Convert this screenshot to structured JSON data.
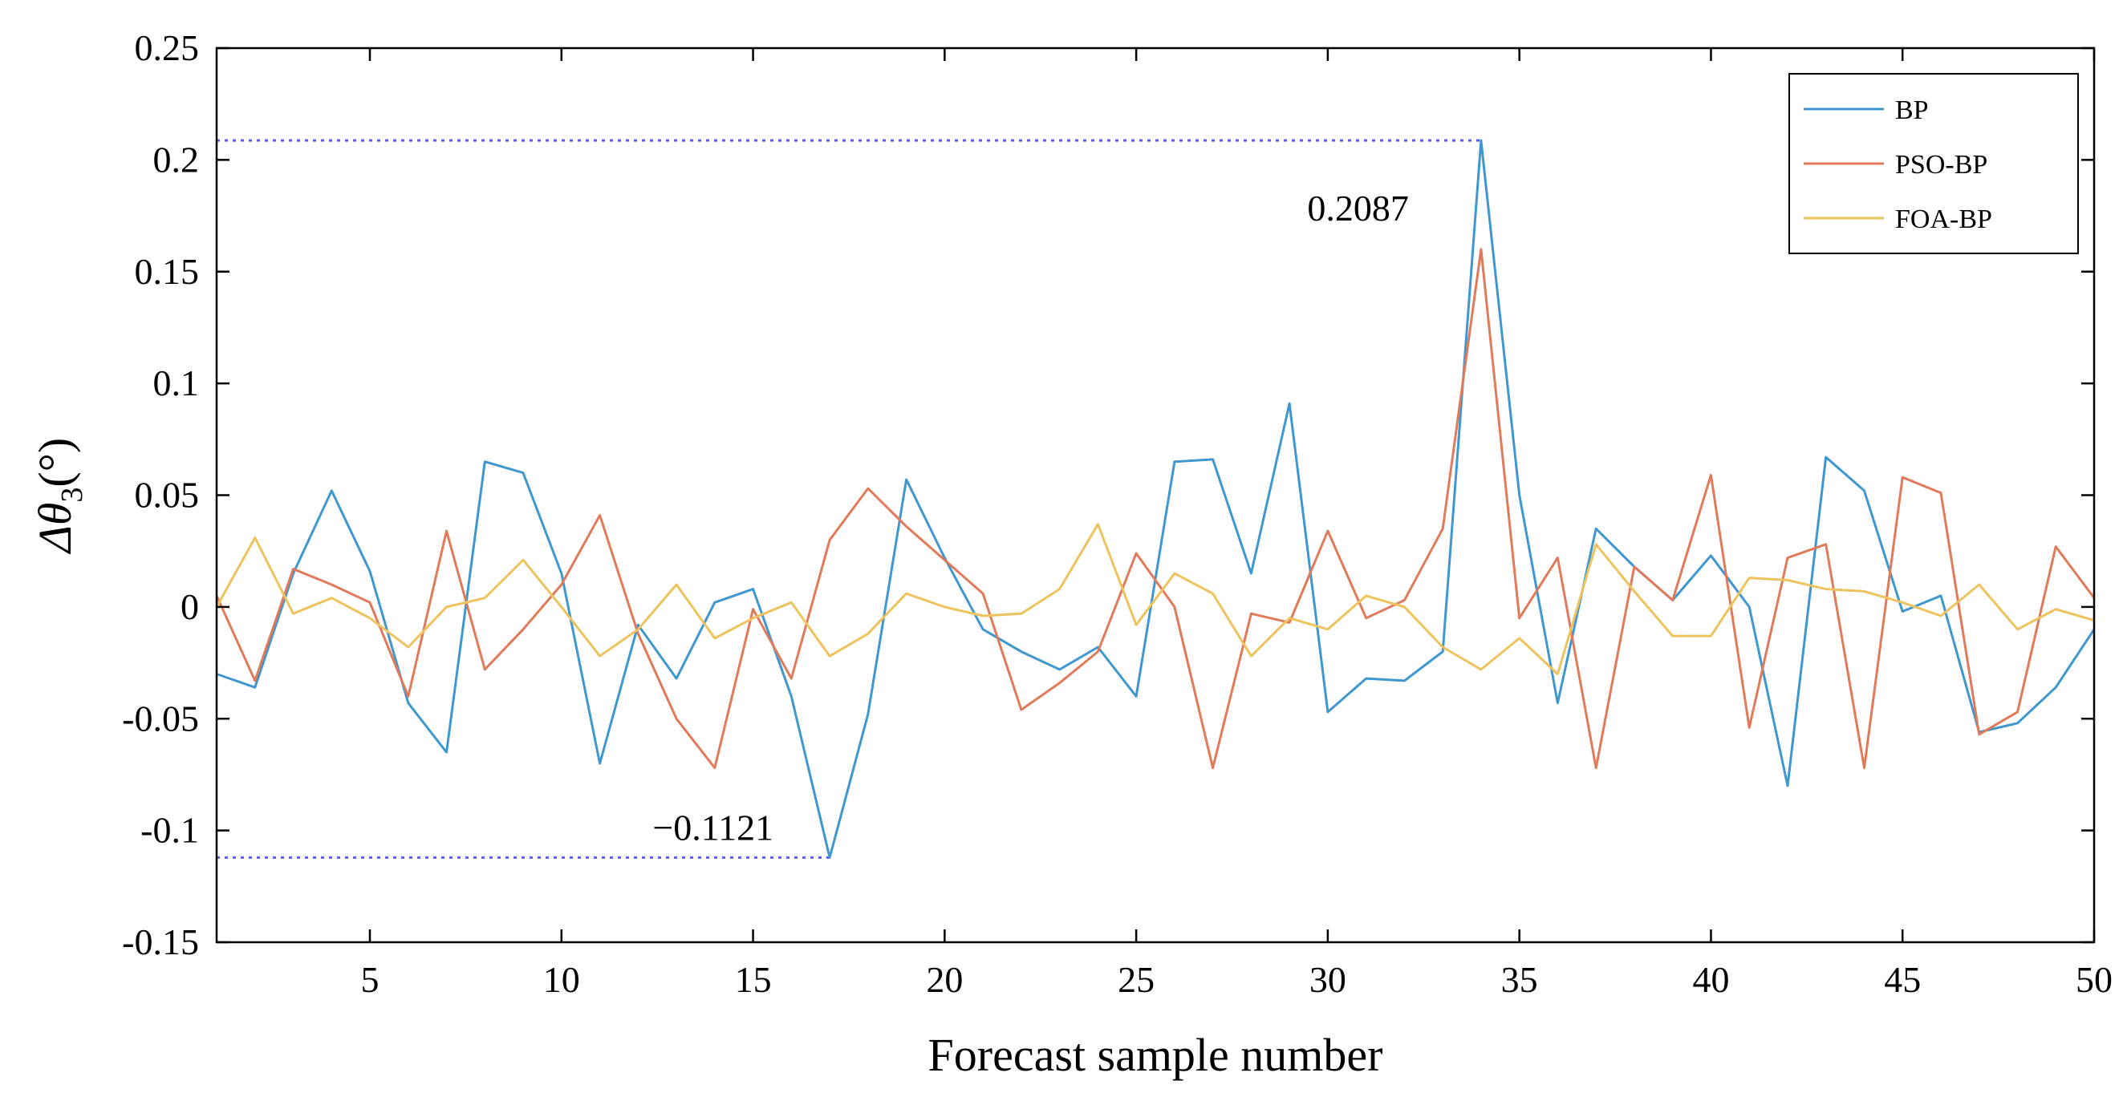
{
  "chart_data": {
    "type": "line",
    "title": "",
    "xlabel": "Forecast sample number",
    "ylabel_main": "Δθ",
    "ylabel_sub": "3",
    "ylabel_unit": "(°)",
    "xlim": [
      1,
      50
    ],
    "ylim": [
      -0.15,
      0.25
    ],
    "xticks": [
      5,
      10,
      15,
      20,
      25,
      30,
      35,
      40,
      45,
      50
    ],
    "xtick_labels": [
      "5",
      "10",
      "15",
      "20",
      "25",
      "30",
      "35",
      "40",
      "45",
      "50"
    ],
    "yticks": [
      -0.15,
      -0.1,
      -0.05,
      0,
      0.05,
      0.1,
      0.15,
      0.2,
      0.25
    ],
    "ytick_labels": [
      "-0.15",
      "-0.1",
      "-0.05",
      "0",
      "0.05",
      "0.1",
      "0.15",
      "0.2",
      "0.25"
    ],
    "grid": false,
    "legend_position": "top-right",
    "x": [
      1,
      2,
      3,
      4,
      5,
      6,
      7,
      8,
      9,
      10,
      11,
      12,
      13,
      14,
      15,
      16,
      17,
      18,
      19,
      20,
      21,
      22,
      23,
      24,
      25,
      26,
      27,
      28,
      29,
      30,
      31,
      32,
      33,
      34,
      35,
      36,
      37,
      38,
      39,
      40,
      41,
      42,
      43,
      44,
      45,
      46,
      47,
      48,
      49,
      50
    ],
    "series": [
      {
        "name": "BP",
        "color": "#3f97cf",
        "values": [
          -0.03,
          -0.036,
          0.015,
          0.052,
          0.016,
          -0.043,
          -0.065,
          0.065,
          0.06,
          0.015,
          -0.07,
          -0.008,
          -0.032,
          0.002,
          0.008,
          -0.04,
          -0.1121,
          -0.048,
          0.057,
          0.022,
          -0.01,
          -0.02,
          -0.028,
          -0.018,
          -0.04,
          0.065,
          0.066,
          0.015,
          0.091,
          -0.047,
          -0.032,
          -0.033,
          -0.02,
          0.2087,
          0.05,
          -0.043,
          0.035,
          0.018,
          0.003,
          0.023,
          0.0,
          -0.08,
          0.067,
          0.052,
          -0.002,
          0.005,
          -0.056,
          -0.052,
          -0.036,
          -0.01
        ]
      },
      {
        "name": "PSO-BP",
        "color": "#e07a5a",
        "values": [
          0.005,
          -0.033,
          0.017,
          0.01,
          0.002,
          -0.04,
          0.034,
          -0.028,
          -0.01,
          0.01,
          0.041,
          -0.012,
          -0.05,
          -0.072,
          -0.001,
          -0.032,
          0.03,
          0.053,
          0.036,
          0.021,
          0.006,
          -0.046,
          -0.034,
          -0.02,
          0.024,
          0.0,
          -0.072,
          -0.003,
          -0.007,
          0.034,
          -0.005,
          0.003,
          0.035,
          0.16,
          -0.005,
          0.022,
          -0.072,
          0.018,
          0.003,
          0.059,
          -0.054,
          0.022,
          0.028,
          -0.072,
          0.058,
          0.051,
          -0.057,
          -0.047,
          0.027,
          0.004
        ]
      },
      {
        "name": "FOA-BP",
        "color": "#eec35d",
        "values": [
          0.0,
          0.031,
          -0.003,
          0.004,
          -0.005,
          -0.018,
          0.0,
          0.004,
          0.021,
          0.0,
          -0.022,
          -0.01,
          0.01,
          -0.014,
          -0.005,
          0.002,
          -0.022,
          -0.012,
          0.006,
          0.0,
          -0.004,
          -0.003,
          0.008,
          0.037,
          -0.008,
          0.015,
          0.006,
          -0.022,
          -0.005,
          -0.01,
          0.005,
          0.0,
          -0.018,
          -0.028,
          -0.014,
          -0.03,
          0.028,
          0.007,
          -0.013,
          -0.013,
          0.013,
          0.012,
          0.008,
          0.007,
          0.002,
          -0.004,
          0.01,
          -0.01,
          -0.001,
          -0.006
        ]
      }
    ],
    "annotations": [
      {
        "label": "0.2087",
        "x": 34,
        "y": 0.2087
      },
      {
        "label": "−0.1121",
        "x": 17,
        "y": -0.1121
      }
    ],
    "reference_line_color": "#5b5bf0"
  }
}
